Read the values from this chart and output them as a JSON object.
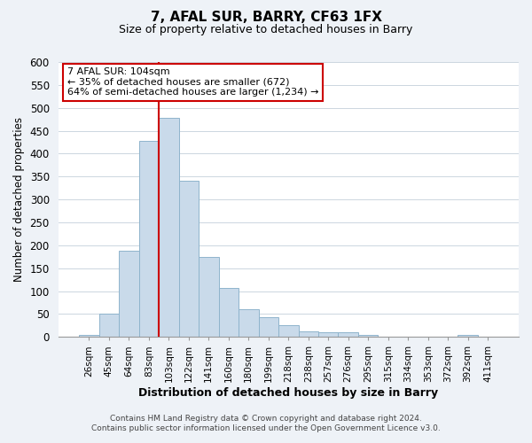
{
  "title": "7, AFAL SUR, BARRY, CF63 1FX",
  "subtitle": "Size of property relative to detached houses in Barry",
  "xlabel": "Distribution of detached houses by size in Barry",
  "ylabel": "Number of detached properties",
  "bar_color": "#c9daea",
  "bar_edge_color": "#8fb4cc",
  "categories": [
    "26sqm",
    "45sqm",
    "64sqm",
    "83sqm",
    "103sqm",
    "122sqm",
    "141sqm",
    "160sqm",
    "180sqm",
    "199sqm",
    "218sqm",
    "238sqm",
    "257sqm",
    "276sqm",
    "295sqm",
    "315sqm",
    "334sqm",
    "353sqm",
    "372sqm",
    "392sqm",
    "411sqm"
  ],
  "values": [
    5,
    50,
    188,
    428,
    478,
    340,
    175,
    107,
    60,
    43,
    25,
    12,
    10,
    10,
    5,
    0,
    0,
    0,
    0,
    5,
    0
  ],
  "ylim": [
    0,
    600
  ],
  "yticks": [
    0,
    50,
    100,
    150,
    200,
    250,
    300,
    350,
    400,
    450,
    500,
    550,
    600
  ],
  "property_line_index": 4,
  "property_line_color": "#cc0000",
  "annotation_line1": "7 AFAL SUR: 104sqm",
  "annotation_line2": "← 35% of detached houses are smaller (672)",
  "annotation_line3": "64% of semi-detached houses are larger (1,234) →",
  "footer_text": "Contains HM Land Registry data © Crown copyright and database right 2024.\nContains public sector information licensed under the Open Government Licence v3.0.",
  "bg_color": "#eef2f7",
  "plot_bg_color": "#ffffff"
}
